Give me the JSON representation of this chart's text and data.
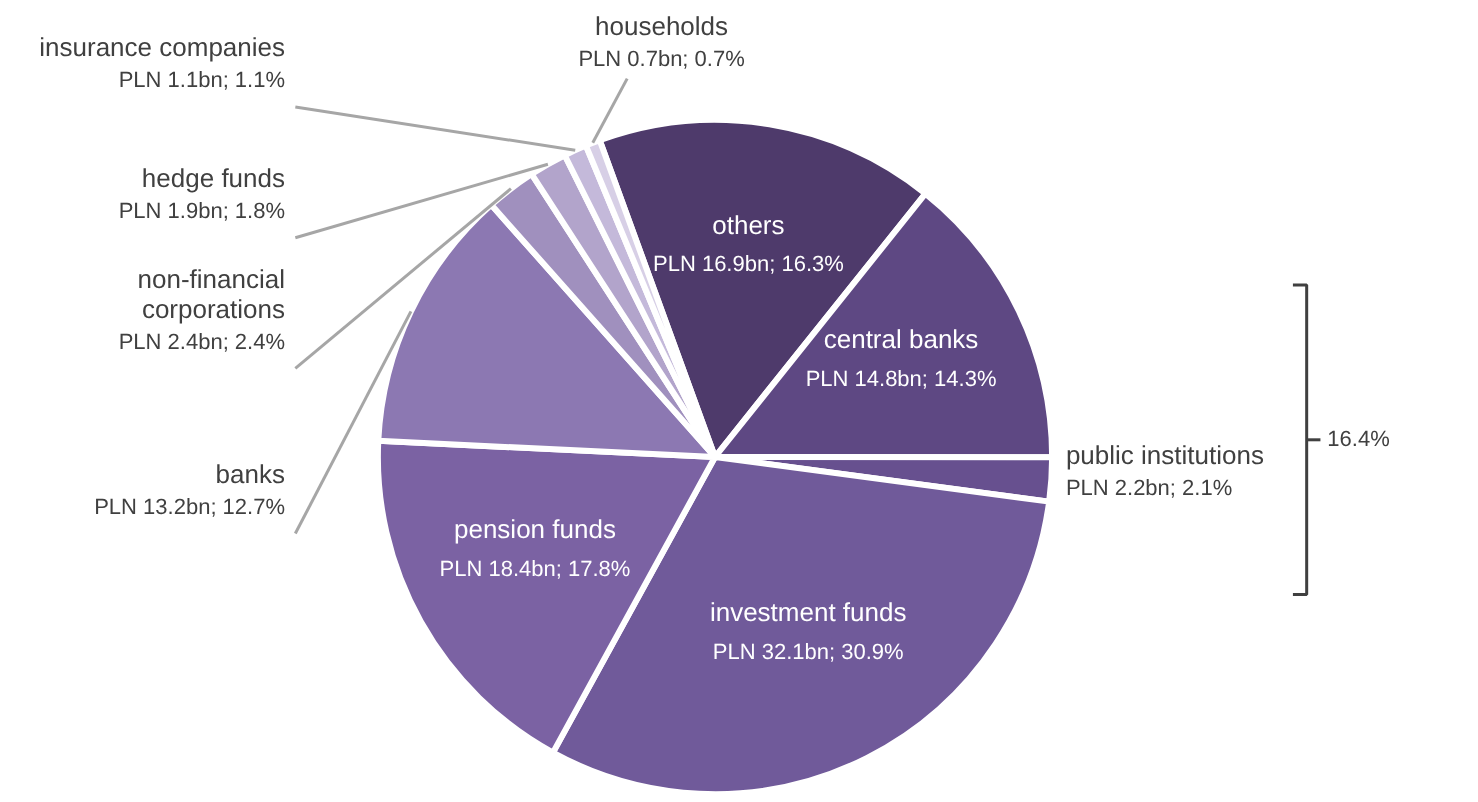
{
  "chart_data": {
    "type": "pie",
    "categories": [
      "others",
      "central banks",
      "public institutions",
      "investment funds",
      "pension funds",
      "banks",
      "non-financial corporations",
      "hedge funds",
      "insurance companies",
      "households"
    ],
    "values": [
      16.3,
      14.3,
      2.1,
      30.9,
      17.8,
      12.7,
      2.4,
      1.8,
      1.1,
      0.7
    ],
    "value_labels": [
      "PLN 16.9bn; 16.3%",
      "PLN 14.8bn; 14.3%",
      "PLN 2.2bn; 2.1%",
      "PLN 32.1bn; 30.9%",
      "PLN 18.4bn; 17.8%",
      "PLN 13.2bn; 12.7%",
      "PLN 2.4bn; 2.4%",
      "PLN 1.9bn; 1.8%",
      "PLN 1.1bn; 1.1%",
      "PLN 0.7bn; 0.7%"
    ],
    "colors": [
      "#4e3a6b",
      "#5e4883",
      "#67508f",
      "#705a9a",
      "#7b62a3",
      "#8c78b2",
      "#a090be",
      "#b2a4cb",
      "#c4b9da",
      "#d7cfe6"
    ],
    "annotations": [
      "16.4%"
    ]
  }
}
